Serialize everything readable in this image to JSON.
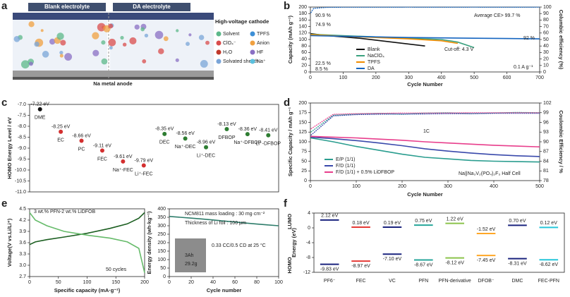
{
  "diagram": {
    "panel": "a",
    "titles": [
      "Blank electrolyte",
      "DA electrolyte"
    ],
    "cathode": "High-voltage cathode",
    "anode": "Na metal anode",
    "legend": [
      "Solvent",
      "TPFS",
      "ClO₄⁻",
      "Anion",
      "H₂O",
      "HF",
      "Solvated sheath",
      "Na⁺"
    ]
  },
  "chart_data": [
    {
      "type": "line",
      "panel": "b",
      "xlabel": "Cycle Number",
      "ylabel": "Capacity (mAh g⁻¹)",
      "y2label": "Columbic efficiency (%)",
      "xlim": [
        0,
        700
      ],
      "xticks": [
        0,
        100,
        200,
        300,
        400,
        500,
        600,
        700
      ],
      "ylim": [
        0,
        200
      ],
      "yticks": [
        0,
        20,
        40,
        60,
        80,
        100,
        120,
        140,
        160,
        180,
        200
      ],
      "y2lim": [
        0,
        100
      ],
      "y2ticks": [
        0,
        10,
        20,
        30,
        40,
        50,
        60,
        70,
        80,
        90,
        100
      ],
      "series": [
        {
          "name": "Blank",
          "color": "#111111",
          "x": [
            1,
            50,
            100,
            150,
            200,
            250,
            300,
            350
          ],
          "values": [
            118,
            112,
            108,
            104,
            98,
            92,
            86,
            80
          ]
        },
        {
          "name": "NaClO₄",
          "color": "#3aa17e",
          "x": [
            1,
            100,
            200,
            300,
            400,
            450,
            500
          ],
          "values": [
            116,
            112,
            108,
            104,
            100,
            92,
            75
          ]
        },
        {
          "name": "TPFS",
          "color": "#f08c00",
          "x": [
            1,
            100,
            200,
            300,
            400,
            450
          ],
          "values": [
            115,
            110,
            106,
            102,
            96,
            88
          ]
        },
        {
          "name": "DA",
          "color": "#1565c0",
          "x": [
            1,
            100,
            200,
            300,
            400,
            500,
            600,
            700
          ],
          "values": [
            112,
            110,
            108,
            106,
            105,
            104,
            103,
            102
          ]
        },
        {
          "axis": "y2",
          "color": "#1565c0",
          "x": [
            1,
            10,
            50,
            100,
            200,
            300,
            400,
            500,
            600,
            700
          ],
          "values": [
            90.9,
            98,
            99.5,
            99.7,
            99.7,
            99.8,
            99.7,
            99.8,
            99.7,
            99.8
          ]
        }
      ],
      "annotations": [
        "90.9 %",
        "74.9 %",
        "22.5 %",
        "8.5 %",
        "92 %",
        "Average CE> 99.7 %",
        "Cut-off: 4.3 V",
        "0.1 A g⁻¹"
      ]
    },
    {
      "type": "dot",
      "panel": "c",
      "ylabel": "HOMO Energy Level / eV",
      "categories": [
        "DME",
        "EC",
        "PC",
        "FEC",
        "Na⁺-FEC",
        "Li⁺-FEC",
        "DEC",
        "Na⁺-DEC",
        "Li⁺-DEC",
        "DFBOP",
        "Na⁺-DFBOP",
        "Li⁺-DFBOP"
      ],
      "values": [
        -7.22,
        -8.25,
        -8.66,
        -9.11,
        -9.61,
        -9.79,
        -8.35,
        -8.56,
        -8.96,
        -8.13,
        -8.36,
        -8.41
      ],
      "value_labels": [
        "-7.22 eV",
        "-8.25 eV",
        "-8.66 eV",
        "-9.11 eV",
        "-9.61 eV",
        "-9.79 eV",
        "-8.35 eV",
        "-8.56 eV",
        "-8.96 eV",
        "-8.13 eV",
        "-8.36 eV",
        "-8.41 eV"
      ],
      "colors": [
        "#111111",
        "#d32f2f",
        "#d32f2f",
        "#d32f2f",
        "#d32f2f",
        "#d32f2f",
        "#2e7d32",
        "#2e7d32",
        "#2e7d32",
        "#2e7d32",
        "#2e7d32",
        "#2e7d32"
      ],
      "ylim": [
        -11,
        -7
      ],
      "yticks": [
        {
          "value": -7,
          "label": "-7.0"
        },
        -7.5,
        {
          "value": -8,
          "label": "-8.0"
        },
        -8.5,
        {
          "value": -9,
          "label": "-9.0"
        },
        -9.5,
        {
          "value": -10,
          "label": "-10.0"
        },
        -10.5,
        {
          "value": -11,
          "label": "-11.0"
        }
      ]
    },
    {
      "type": "line",
      "panel": "d",
      "xlabel": "Cycle Number",
      "ylabel": "Specific Capacity / mAh g⁻¹",
      "y2label": "Coulombic Efficiency / %",
      "xlim": [
        0,
        500
      ],
      "xticks": [
        0,
        100,
        200,
        300,
        400,
        500
      ],
      "ylim": [
        0,
        200
      ],
      "yticks": [
        0,
        25,
        50,
        75,
        100,
        125,
        150,
        175,
        200
      ],
      "y2lim": [
        78,
        102
      ],
      "y2ticks": [
        78,
        81,
        84,
        87,
        90,
        93,
        96,
        99,
        102
      ],
      "series": [
        {
          "name": "E/P (1/1)",
          "color": "#2a9d8f",
          "x": [
            1,
            50,
            100,
            150,
            200,
            250,
            300,
            350,
            400,
            450,
            500
          ],
          "values": [
            110,
            100,
            88,
            78,
            68,
            60,
            56,
            52,
            50,
            49,
            48
          ]
        },
        {
          "name": "F/D (1/1)",
          "color": "#3949ab",
          "x": [
            1,
            50,
            100,
            150,
            200,
            250,
            300,
            350,
            400,
            450,
            500
          ],
          "values": [
            112,
            108,
            103,
            97,
            90,
            82,
            76,
            71,
            67,
            64,
            62
          ]
        },
        {
          "name": "F/D (1/1) + 0.5% LiDFBOP",
          "color": "#e83e8c",
          "x": [
            1,
            50,
            100,
            150,
            200,
            250,
            300,
            350,
            400,
            450,
            500
          ],
          "values": [
            114,
            112,
            110,
            107,
            104,
            100,
            97,
            94,
            91,
            89,
            87
          ]
        },
        {
          "axis": "y2",
          "color": "#2a9d8f",
          "x": [
            1,
            50,
            100,
            150,
            200,
            250,
            300,
            350,
            400,
            450,
            500
          ],
          "values": [
            93,
            98.2,
            98.6,
            98.8,
            98.5,
            98.9,
            99,
            98.7,
            98.9,
            99.1,
            99
          ]
        },
        {
          "axis": "y2",
          "color": "#3949ab",
          "x": [
            1,
            50,
            100,
            150,
            200,
            250,
            300,
            350,
            400,
            450,
            500
          ],
          "values": [
            92,
            98,
            98.4,
            98.5,
            98.6,
            98.6,
            98.7,
            98.7,
            98.8,
            98.8,
            98.8
          ]
        },
        {
          "axis": "y2",
          "color": "#e83e8c",
          "x": [
            1,
            50,
            100,
            150,
            200,
            250,
            300,
            350,
            400,
            450,
            500
          ],
          "values": [
            94,
            98.5,
            98.7,
            98.8,
            98.9,
            98.9,
            98.9,
            99,
            99,
            99,
            99
          ]
        }
      ],
      "annotations": [
        "1C",
        "Na||Na₃V₂(PO₄)₂F₃ Half Cell"
      ]
    },
    {
      "type": "line",
      "panel": "e",
      "xlabel": "Specific capacity (mA·g⁻¹)",
      "ylabel": "Voltage(V vs.Li/Li⁺)",
      "xlim": [
        0,
        200
      ],
      "xticks": [
        0,
        50,
        100,
        150,
        200
      ],
      "ylim": [
        2.7,
        4.5
      ],
      "yticks": [
        2.7,
        {
          "value": 3,
          "label": "3.0"
        },
        3.3,
        3.6,
        3.9,
        4.2,
        4.5
      ],
      "series": [
        {
          "color": "#1b5e20",
          "x": [
            0,
            10,
            30,
            60,
            100,
            140,
            170,
            190,
            200
          ],
          "values": [
            3.55,
            3.62,
            3.68,
            3.75,
            3.85,
            3.98,
            4.1,
            4.25,
            4.4
          ]
        },
        {
          "color": "#66bb6a",
          "x": [
            0,
            10,
            30,
            60,
            100,
            140,
            170,
            190,
            200
          ],
          "values": [
            4.4,
            4.2,
            4.05,
            3.9,
            3.8,
            3.72,
            3.62,
            3.45,
            2.8
          ]
        }
      ],
      "annotations": [
        "3 wt.% PFN-2 wt.% LiDFOB",
        "50 cycles"
      ]
    },
    {
      "type": "line",
      "xlabel": "Cycle number",
      "ylabel": "Energy density (wh·kg⁻¹)",
      "xlim": [
        0,
        100
      ],
      "xticks": [
        0,
        20,
        40,
        60,
        80,
        100
      ],
      "ylim": [
        0,
        400
      ],
      "yticks": [
        0,
        50,
        100,
        150,
        200,
        250,
        300,
        350,
        400
      ],
      "series": [
        {
          "color": "#2e7d6b",
          "x": [
            0,
            10,
            20,
            30,
            40,
            50,
            60,
            70,
            80,
            90,
            100
          ],
          "values": [
            355,
            350,
            345,
            340,
            334,
            328,
            322,
            316,
            310,
            305,
            300
          ]
        }
      ],
      "annotations": [
        "NCM811 mass loading : 30 mg·cm⁻²",
        "Thickness of Li foil : 100 μm",
        "0.33 CC/0.5 CD at 25 °C",
        "3Ah",
        "29.2g"
      ]
    },
    {
      "type": "level",
      "panel": "f",
      "ylabel": "Energy (eV)",
      "ylim": [
        -12,
        4
      ],
      "yticks": [
        -12,
        -8,
        -4,
        0,
        4
      ],
      "categories": [
        "PF6⁻",
        "FEC",
        "VC",
        "PFN",
        "PFN-derivative",
        "DFOB⁻",
        "DMC",
        "FEC-PFN"
      ],
      "colors": [
        "#1a237e",
        "#e53935",
        "#1a237e",
        "#26a69a",
        "#8bc34a",
        "#ffa726",
        "#1a237e",
        "#26c6da"
      ],
      "series": [
        {
          "name": "LUMO",
          "values": [
            2.12,
            0.18,
            0.19,
            0.75,
            1.22,
            -1.52,
            0.7,
            0.12
          ],
          "value_labels": [
            "2.12 eV",
            "0.18 eV",
            "0.19 eV",
            "0.75 eV",
            "1.22 eV",
            "-1.52 eV",
            "0.70 eV",
            "0.12 eV"
          ]
        },
        {
          "name": "HOMO",
          "values": [
            -9.83,
            -8.97,
            -7.1,
            -8.67,
            -8.12,
            -7.45,
            -8.31,
            -8.62
          ],
          "value_labels": [
            "-9.83 eV",
            "-8.97 eV",
            "-7.10 eV",
            "-8.67 eV",
            "-8.12 eV",
            "-7.45 eV",
            "-8.31 eV",
            "-8.62 eV"
          ]
        }
      ]
    }
  ]
}
